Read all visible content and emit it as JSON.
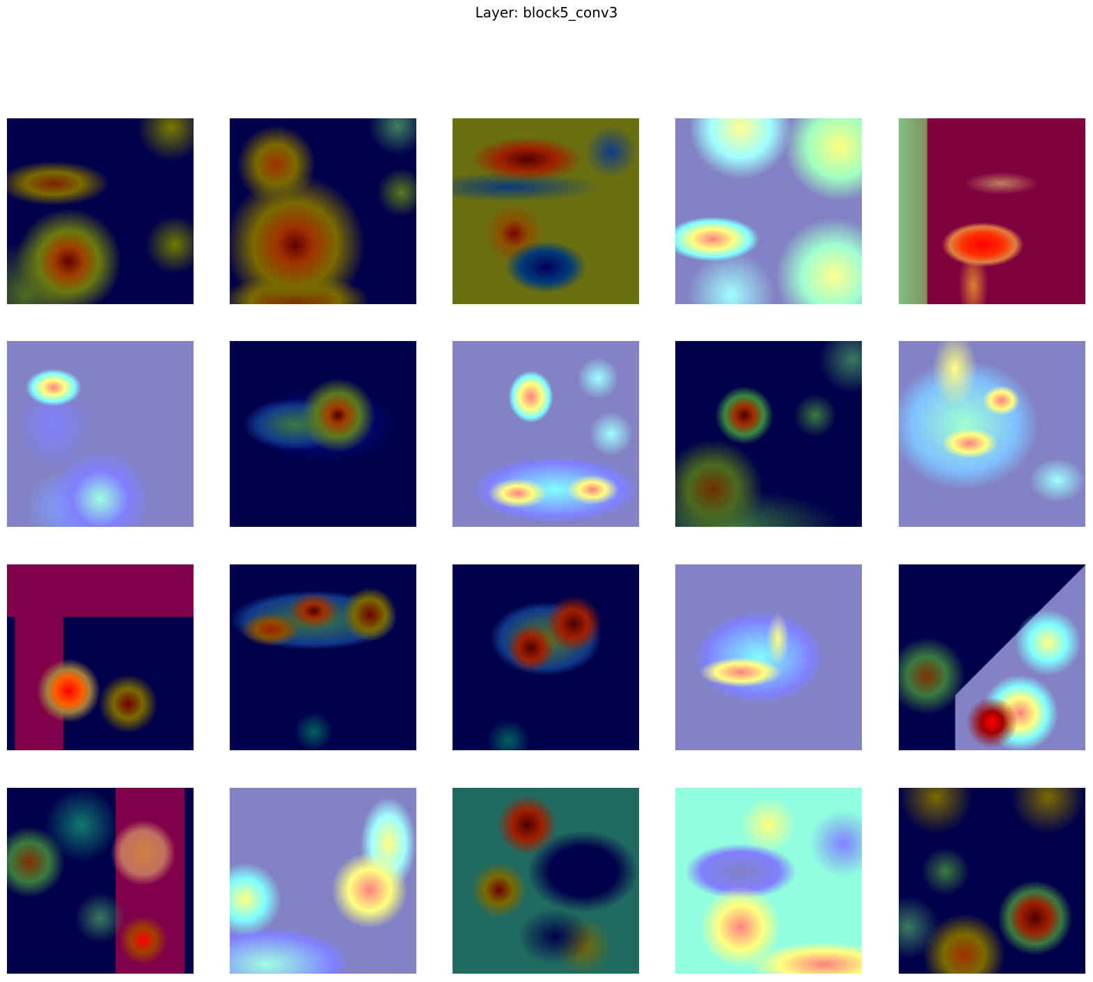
{
  "figure": {
    "title": "Layer: block5_conv3"
  }
}
